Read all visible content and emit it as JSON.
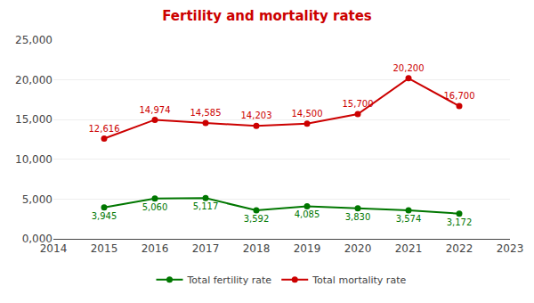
{
  "chart_data": {
    "type": "line",
    "title": "Fertility and mortality rates",
    "x": [
      2015,
      2016,
      2017,
      2018,
      2019,
      2020,
      2021,
      2022
    ],
    "series": [
      {
        "name": "Total fertility rate",
        "color": "#007700",
        "marker": "circle",
        "values": [
          3945,
          5060,
          5117,
          3592,
          4085,
          3830,
          3574,
          3172
        ],
        "value_labels": [
          "3,945",
          "5,060",
          "5,117",
          "3,592",
          "4,085",
          "3,830",
          "3,574",
          "3,172"
        ]
      },
      {
        "name": "Total mortality rate",
        "color": "#CC0000",
        "marker": "circle",
        "values": [
          12616,
          14974,
          14585,
          14203,
          14500,
          15700,
          20200,
          16700
        ],
        "value_labels": [
          "12,616",
          "14,974",
          "14,585",
          "14,203",
          "14,500",
          "15,700",
          "20,200",
          "16,700"
        ]
      }
    ],
    "xlim": [
      2014,
      2023
    ],
    "xticks": [
      2014,
      2015,
      2016,
      2017,
      2018,
      2019,
      2020,
      2021,
      2022,
      2023
    ],
    "ylim": [
      0,
      25000
    ],
    "yticks": [
      {
        "value": 0,
        "label": "0,000"
      },
      {
        "value": 5000,
        "label": "5,000"
      },
      {
        "value": 10000,
        "label": "10,000"
      },
      {
        "value": 15000,
        "label": "15,000"
      },
      {
        "value": 20000,
        "label": "20,000"
      },
      {
        "value": 25000,
        "label": "25,000"
      }
    ],
    "grid": true,
    "legend": "bottom",
    "data_labels": true
  }
}
